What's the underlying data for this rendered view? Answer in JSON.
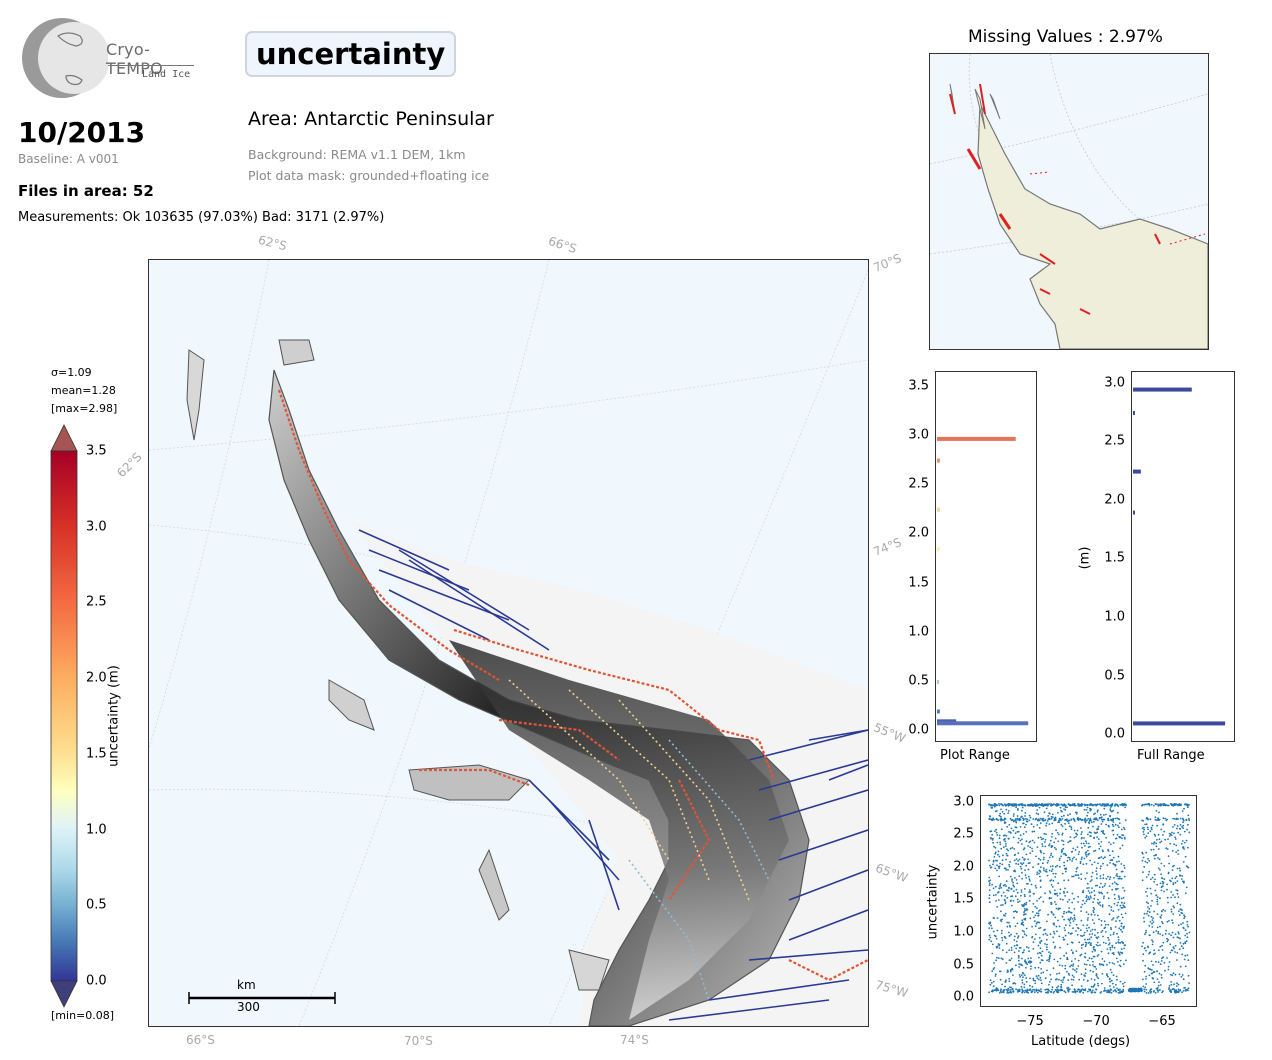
{
  "logo": {
    "name": "Cryo-TEMPO",
    "sub": "Land Ice"
  },
  "variable_title": "uncertainty",
  "date": "10/2013",
  "baseline": "Baseline: A v001",
  "files_in_area": "Files in area: 52",
  "measurements": "Measurements: Ok 103635 (97.03%) Bad: 3171 (2.97%)",
  "area": "Area: Antarctic Peninsular",
  "background_note": "Background: REMA v1.1 DEM, 1km",
  "mask_note": "Plot data mask: grounded+floating ice",
  "missing_values": "Missing Values : 2.97%",
  "map_grid_labels": {
    "top": [
      "62°S",
      "66°S",
      "70°S"
    ],
    "bottom": [
      "66°S",
      "70°S",
      "74°S"
    ],
    "left": [
      "62°S"
    ],
    "right": [
      "74°S",
      "55°W",
      "65°W",
      "75°W"
    ]
  },
  "scale_bar": {
    "unit": "km",
    "value": "300"
  },
  "colorbar": {
    "sigma": "σ=1.09",
    "mean": "mean=1.28",
    "max": "[max=2.98]",
    "min": "[min=0.08]",
    "label": "uncertainty (m)",
    "ticks": [
      "3.5",
      "3.0",
      "2.5",
      "2.0",
      "1.5",
      "1.0",
      "0.5",
      "0.0"
    ],
    "range": [
      0,
      3.5
    ]
  },
  "hist_plot_range": {
    "xlabel": "Plot Range",
    "ticks": [
      "3.5",
      "3.0",
      "2.5",
      "2.0",
      "1.5",
      "1.0",
      "0.5",
      "0.0"
    ],
    "ylim": [
      -0.1,
      3.65
    ],
    "bars": [
      {
        "y": 2.97,
        "rel": 0.82,
        "color": "#e8735c"
      },
      {
        "y": 2.75,
        "rel": 0.03,
        "color": "#f08a5a"
      },
      {
        "y": 2.25,
        "rel": 0.03,
        "color": "#f6d48e"
      },
      {
        "y": 1.85,
        "rel": 0.03,
        "color": "#fdf0b0"
      },
      {
        "y": 0.5,
        "rel": 0.02,
        "color": "#9ec8e0"
      },
      {
        "y": 0.2,
        "rel": 0.03,
        "color": "#4e7fbf"
      },
      {
        "y": 0.1,
        "rel": 0.2,
        "color": "#4a5fb0"
      },
      {
        "y": 0.08,
        "rel": 0.95,
        "color": "#5a6fba"
      }
    ]
  },
  "hist_full_range": {
    "xlabel": "Full Range",
    "ylabel": "(m)",
    "ticks": [
      "3.0",
      "2.5",
      "2.0",
      "1.5",
      "1.0",
      "0.5",
      "0.0"
    ],
    "ylim": [
      -0.05,
      3.1
    ],
    "bars": [
      {
        "y": 2.95,
        "rel": 0.6,
        "color": "#3b4a9c"
      },
      {
        "y": 2.75,
        "rel": 0.02,
        "color": "#3b4a9c"
      },
      {
        "y": 2.25,
        "rel": 0.08,
        "color": "#3b4a9c"
      },
      {
        "y": 1.9,
        "rel": 0.02,
        "color": "#3b4a9c"
      },
      {
        "y": 0.1,
        "rel": 0.94,
        "color": "#3b4a9c"
      }
    ]
  },
  "scatter": {
    "xlabel": "Latitude (degs)",
    "ylabel": "uncertainty",
    "xticks": [
      "−75",
      "−70",
      "−65"
    ],
    "yticks": [
      "3.0",
      "2.5",
      "2.0",
      "1.5",
      "1.0",
      "0.5",
      "0.0"
    ],
    "xlim": [
      -78.8,
      -62.5
    ],
    "ylim": [
      -0.12,
      3.1
    ],
    "color": "#1f77b4"
  }
}
